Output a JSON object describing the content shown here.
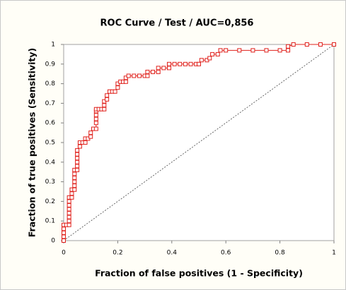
{
  "chart_data": {
    "type": "line",
    "title": "ROC Curve / Test / AUC=0,856",
    "x_label": "Fraction of false positives (1 - Specificity)",
    "y_label": "Fraction of true positives (Sensitivity)",
    "color": "#e0201b",
    "marker": "square",
    "diagonal": true,
    "grid": false,
    "xlim": [
      0,
      1
    ],
    "ylim": [
      0,
      1
    ],
    "xticks": [
      0,
      0.2,
      0.4,
      0.6,
      0.8,
      1
    ],
    "yticks": [
      0,
      0.1,
      0.2,
      0.3,
      0.4,
      0.5,
      0.6,
      0.7,
      0.8,
      0.9,
      1
    ],
    "x": [
      0,
      0,
      0,
      0,
      0,
      0.01,
      0.02,
      0.02,
      0.02,
      0.02,
      0.02,
      0.02,
      0.02,
      0.02,
      0.03,
      0.03,
      0.03,
      0.04,
      0.04,
      0.04,
      0.04,
      0.04,
      0.04,
      0.05,
      0.05,
      0.05,
      0.05,
      0.05,
      0.05,
      0.06,
      0.06,
      0.07,
      0.08,
      0.08,
      0.09,
      0.1,
      0.1,
      0.11,
      0.12,
      0.12,
      0.12,
      0.12,
      0.12,
      0.12,
      0.13,
      0.14,
      0.15,
      0.15,
      0.15,
      0.16,
      0.16,
      0.17,
      0.18,
      0.19,
      0.2,
      0.2,
      0.21,
      0.22,
      0.23,
      0.23,
      0.24,
      0.26,
      0.28,
      0.3,
      0.31,
      0.31,
      0.33,
      0.35,
      0.35,
      0.37,
      0.39,
      0.39,
      0.41,
      0.43,
      0.45,
      0.47,
      0.49,
      0.5,
      0.51,
      0.53,
      0.54,
      0.55,
      0.57,
      0.58,
      0.6,
      0.65,
      0.7,
      0.75,
      0.8,
      0.83,
      0.83,
      0.85,
      0.9,
      0.95,
      1
    ],
    "values": [
      0,
      0.02,
      0.04,
      0.06,
      0.08,
      0.08,
      0.08,
      0.1,
      0.12,
      0.14,
      0.16,
      0.18,
      0.2,
      0.22,
      0.22,
      0.24,
      0.26,
      0.26,
      0.28,
      0.3,
      0.32,
      0.34,
      0.36,
      0.36,
      0.38,
      0.4,
      0.42,
      0.44,
      0.46,
      0.48,
      0.5,
      0.5,
      0.5,
      0.52,
      0.52,
      0.53,
      0.55,
      0.57,
      0.57,
      0.6,
      0.62,
      0.64,
      0.66,
      0.67,
      0.67,
      0.67,
      0.67,
      0.69,
      0.71,
      0.72,
      0.74,
      0.76,
      0.76,
      0.76,
      0.78,
      0.8,
      0.81,
      0.81,
      0.81,
      0.83,
      0.84,
      0.84,
      0.84,
      0.84,
      0.84,
      0.86,
      0.86,
      0.86,
      0.88,
      0.88,
      0.88,
      0.9,
      0.9,
      0.9,
      0.9,
      0.9,
      0.9,
      0.9,
      0.92,
      0.92,
      0.93,
      0.95,
      0.95,
      0.97,
      0.97,
      0.97,
      0.97,
      0.97,
      0.97,
      0.97,
      0.99,
      1,
      1,
      1,
      1
    ]
  }
}
